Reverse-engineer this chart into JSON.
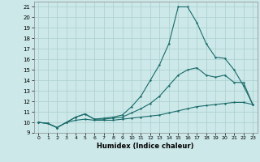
{
  "xlabel": "Humidex (Indice chaleur)",
  "bg_color": "#cce8e8",
  "grid_color": "#aacfcf",
  "line_color": "#1a6b6b",
  "xlim": [
    -0.5,
    23.5
  ],
  "ylim": [
    9,
    21.5
  ],
  "xticks": [
    0,
    1,
    2,
    3,
    4,
    5,
    6,
    7,
    8,
    9,
    10,
    11,
    12,
    13,
    14,
    15,
    16,
    17,
    18,
    19,
    20,
    21,
    22,
    23
  ],
  "yticks": [
    9,
    10,
    11,
    12,
    13,
    14,
    15,
    16,
    17,
    18,
    19,
    20,
    21
  ],
  "line1_x": [
    0,
    1,
    2,
    3,
    4,
    5,
    6,
    7,
    8,
    9,
    10,
    11,
    12,
    13,
    14,
    15,
    16,
    17,
    18,
    19,
    20,
    21,
    22,
    23
  ],
  "line1_y": [
    10.0,
    9.9,
    9.5,
    10.0,
    10.2,
    10.3,
    10.2,
    10.2,
    10.2,
    10.3,
    10.4,
    10.5,
    10.6,
    10.7,
    10.9,
    11.1,
    11.3,
    11.5,
    11.6,
    11.7,
    11.8,
    11.9,
    11.9,
    11.7
  ],
  "line2_x": [
    0,
    1,
    2,
    3,
    4,
    5,
    6,
    7,
    8,
    9,
    10,
    11,
    12,
    13,
    14,
    15,
    16,
    17,
    18,
    19,
    20,
    21,
    22,
    23
  ],
  "line2_y": [
    10.0,
    9.9,
    9.5,
    10.0,
    10.5,
    10.8,
    10.3,
    10.3,
    10.4,
    10.5,
    10.9,
    11.3,
    11.8,
    12.5,
    13.5,
    14.5,
    15.0,
    15.2,
    14.5,
    14.3,
    14.5,
    13.8,
    13.8,
    11.7
  ],
  "line3_x": [
    0,
    1,
    2,
    3,
    4,
    5,
    6,
    7,
    8,
    9,
    10,
    11,
    12,
    13,
    14,
    15,
    16,
    17,
    18,
    19,
    20,
    21,
    22,
    23
  ],
  "line3_y": [
    10.0,
    9.9,
    9.5,
    10.0,
    10.5,
    10.8,
    10.3,
    10.4,
    10.5,
    10.7,
    11.5,
    12.5,
    14.0,
    15.5,
    17.5,
    21.0,
    21.0,
    19.5,
    17.5,
    16.2,
    16.1,
    15.0,
    13.5,
    11.7
  ]
}
